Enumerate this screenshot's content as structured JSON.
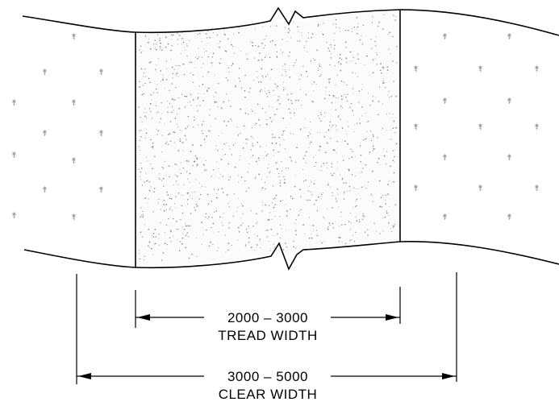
{
  "tread": {
    "range": "2000 – 3000",
    "label": "TREAD WIDTH"
  },
  "clear": {
    "range": "3000 – 5000",
    "label": "CLEAR WIDTH"
  },
  "hatch": {
    "grass_symbol": "⚵",
    "stipple_color": "#8a8a8a",
    "grass_color": "#9a9a9a"
  },
  "colors": {
    "ink": "#000000",
    "background": "#ffffff"
  }
}
